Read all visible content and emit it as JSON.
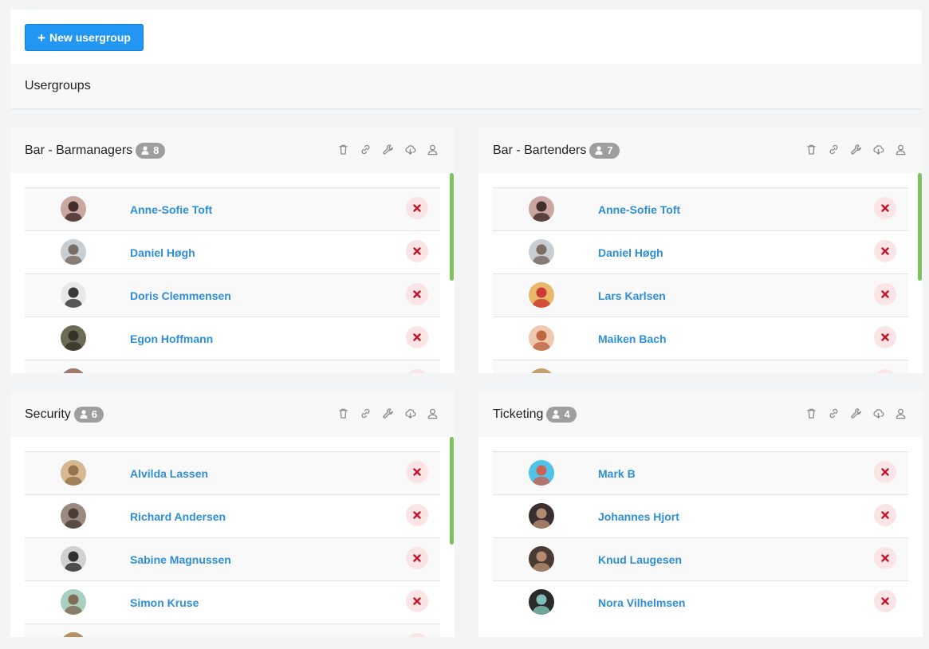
{
  "toolbar": {
    "new_usergroup_label": "New usergroup"
  },
  "page": {
    "section_title": "Usergroups"
  },
  "colors": {
    "primary": "#2196f3",
    "link": "#2e8fd8",
    "remove_bg": "#fbe4e6",
    "remove_icon": "#c0142b",
    "badge": "#9e9e9e",
    "scroll": "#7cc35b"
  },
  "groups": [
    {
      "title": "Bar - Barmanagers",
      "count": "8",
      "members": [
        {
          "name": "Anne-Sofie Toft",
          "avatar_bg": "#c9a6a0",
          "avatar_fg": "#2b1a16"
        },
        {
          "name": "Daniel Høgh",
          "avatar_bg": "#c8cdd2",
          "avatar_fg": "#6b5a50"
        },
        {
          "name": "Doris Clemmensen",
          "avatar_bg": "#e8e8e8",
          "avatar_fg": "#1a1a1a"
        },
        {
          "name": "Egon Hoffmann",
          "avatar_bg": "#6b6a55",
          "avatar_fg": "#2c2a22"
        },
        {
          "name": "",
          "avatar_bg": "#a07a6a",
          "avatar_fg": "#5a3a2a"
        }
      ]
    },
    {
      "title": "Bar - Bartenders",
      "count": "7",
      "members": [
        {
          "name": "Anne-Sofie Toft",
          "avatar_bg": "#c9a6a0",
          "avatar_fg": "#2b1a16"
        },
        {
          "name": "Daniel Høgh",
          "avatar_bg": "#c8cdd2",
          "avatar_fg": "#6b5a50"
        },
        {
          "name": "Lars Karlsen",
          "avatar_bg": "#e8b86a",
          "avatar_fg": "#c8232a"
        },
        {
          "name": "Maiken Bach",
          "avatar_bg": "#f0c8b0",
          "avatar_fg": "#b5562e"
        },
        {
          "name": "",
          "avatar_bg": "#c8a070",
          "avatar_fg": "#6a4a2a"
        }
      ]
    },
    {
      "title": "Security",
      "count": "6",
      "members": [
        {
          "name": "Alvilda Lassen",
          "avatar_bg": "#d8b890",
          "avatar_fg": "#8a6a40"
        },
        {
          "name": "Richard Andersen",
          "avatar_bg": "#9a8a80",
          "avatar_fg": "#3a302a"
        },
        {
          "name": "Sabine Magnussen",
          "avatar_bg": "#d0d0d0",
          "avatar_fg": "#151515"
        },
        {
          "name": "Simon Kruse",
          "avatar_bg": "#a8d0c0",
          "avatar_fg": "#7a5a40"
        },
        {
          "name": "",
          "avatar_bg": "#b89060",
          "avatar_fg": "#6a4a2a"
        }
      ]
    },
    {
      "title": "Ticketing",
      "count": "4",
      "members": [
        {
          "name": "Mark B",
          "avatar_bg": "#4fc3e8",
          "avatar_fg": "#e0523a"
        },
        {
          "name": "Johannes Hjort",
          "avatar_bg": "#3a3030",
          "avatar_fg": "#c89a7a"
        },
        {
          "name": "Knud Laugesen",
          "avatar_bg": "#4a3a34",
          "avatar_fg": "#c89a7a"
        },
        {
          "name": "Nora Vilhelmsen",
          "avatar_bg": "#2a2a2a",
          "avatar_fg": "#8fd8d0"
        }
      ]
    }
  ]
}
